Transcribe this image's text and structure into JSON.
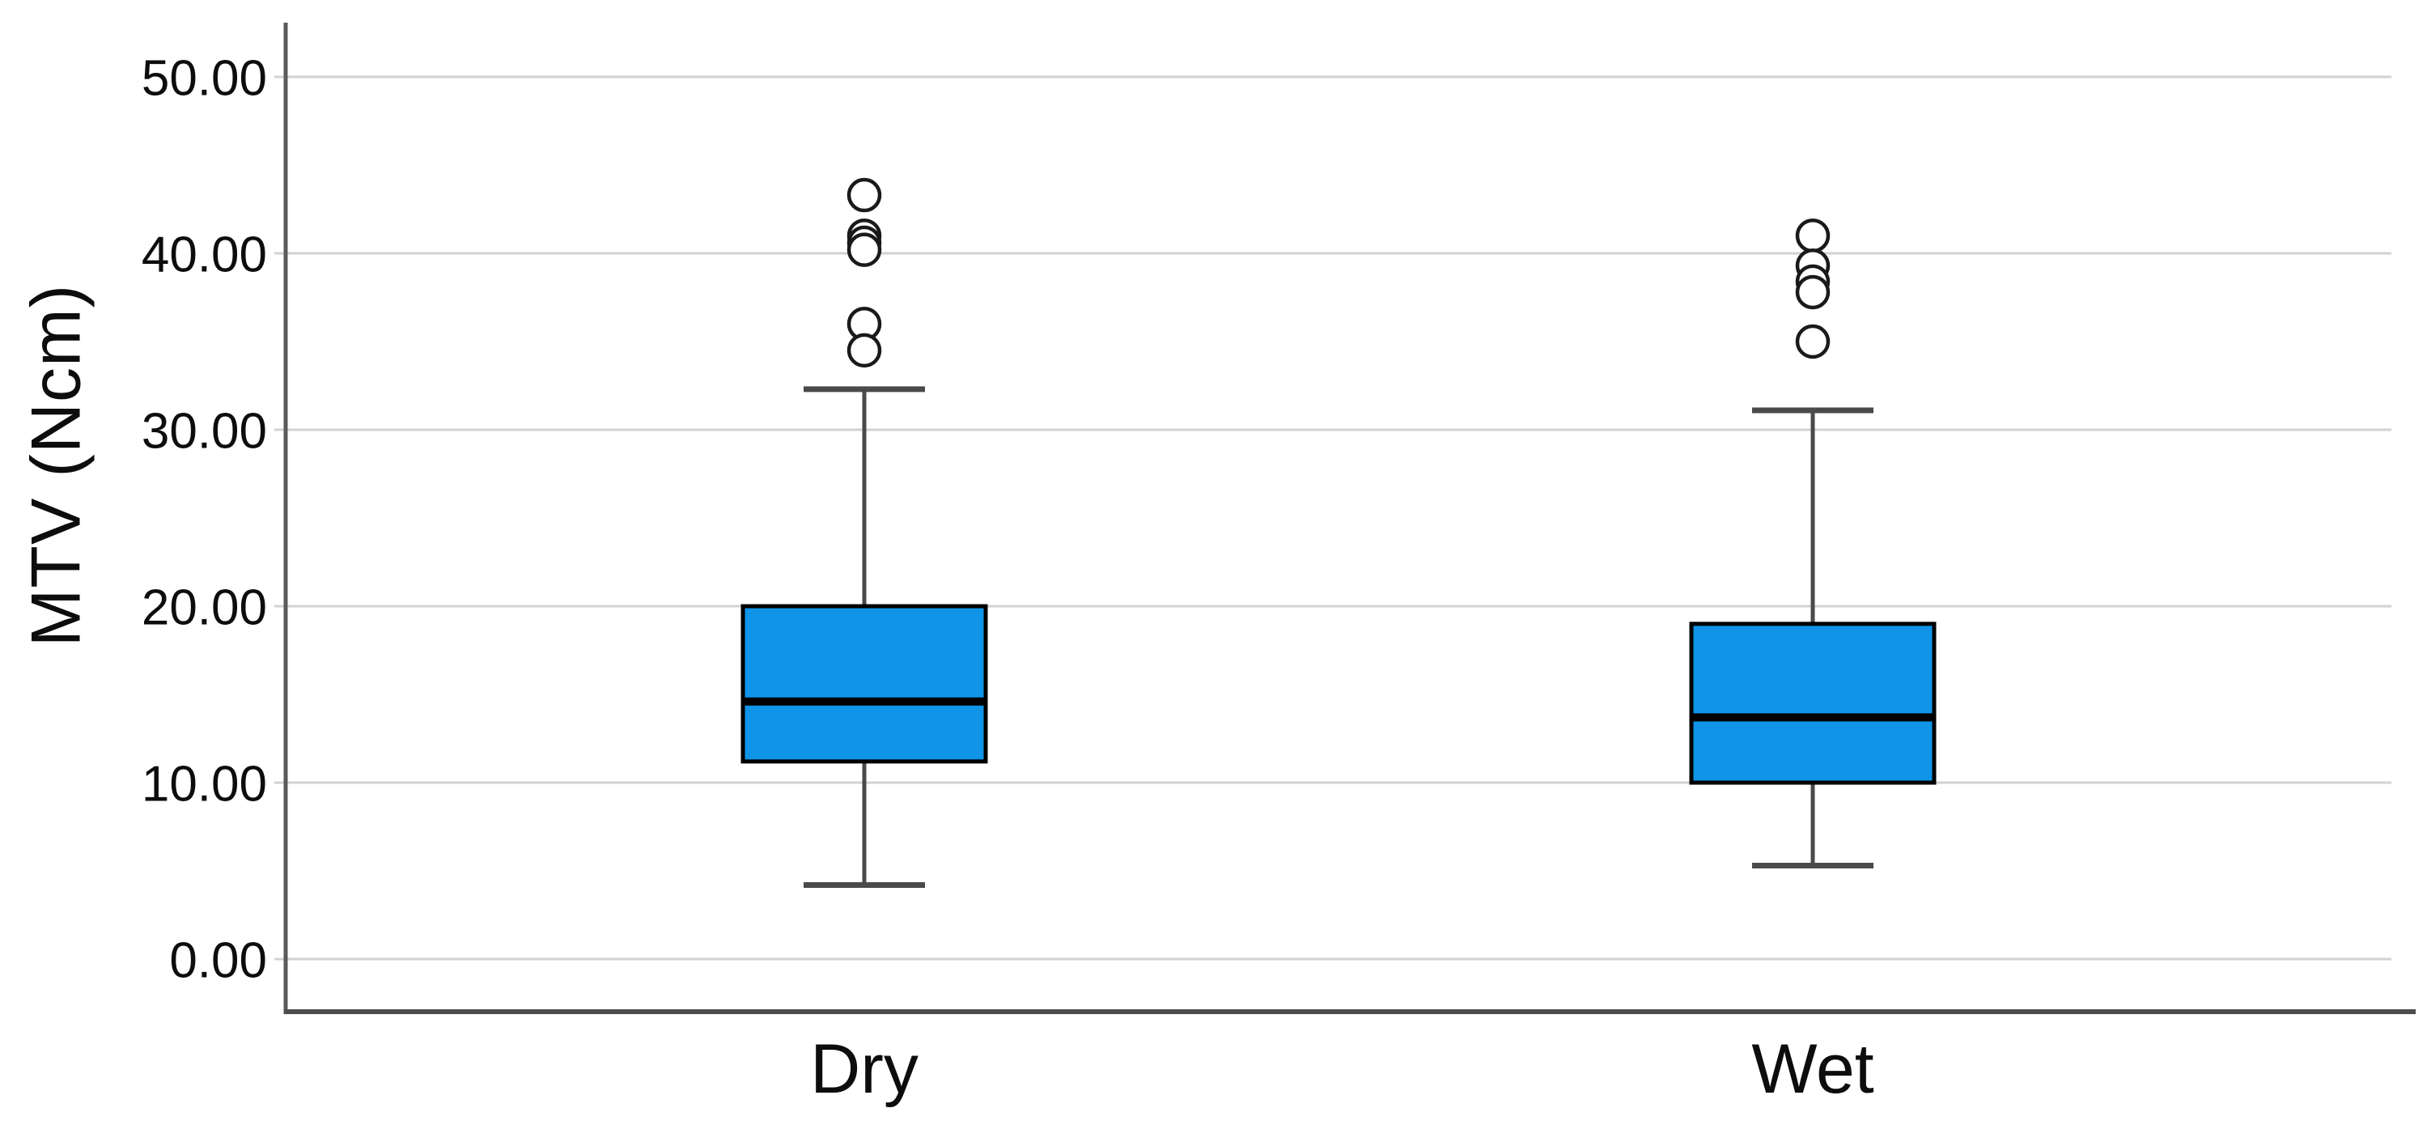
{
  "chart_data": {
    "type": "boxplot",
    "title": "",
    "xlabel": "",
    "ylabel": "MTV (Ncm)",
    "ylim": [
      -3,
      53
    ],
    "yticks": [
      0,
      10,
      20,
      30,
      40,
      50
    ],
    "ytick_labels": [
      "0.00",
      "10.00",
      "20.00",
      "30.00",
      "40.00",
      "50.00"
    ],
    "categories": [
      "Dry",
      "Wet"
    ],
    "grid": true,
    "legend": "none",
    "series": [
      {
        "category": "Dry",
        "whisker_low": 4.2,
        "q1": 11.2,
        "median": 14.6,
        "q3": 20.0,
        "whisker_high": 32.3,
        "outliers": [
          43.3,
          41.0,
          40.6,
          40.2,
          36.0,
          34.5
        ]
      },
      {
        "category": "Wet",
        "whisker_low": 5.3,
        "q1": 10.0,
        "median": 13.7,
        "q3": 19.0,
        "whisker_high": 31.1,
        "outliers": [
          41.0,
          39.3,
          38.4,
          37.8,
          35.0
        ]
      }
    ],
    "colors": {
      "box_fill": "#0F94E8",
      "box_stroke": "#000000",
      "median": "#000000",
      "whisker": "#4a4a4a",
      "cap": "#4a4a4a",
      "outlier_stroke": "#1a1a1a",
      "outlier_fill": "#ffffff",
      "gridline": "#d2d2d2",
      "y_axis_line": "#5a5a5a",
      "x_axis_line": "#4d4d4d",
      "text": "#0d0d0d",
      "background": "#ffffff"
    }
  }
}
